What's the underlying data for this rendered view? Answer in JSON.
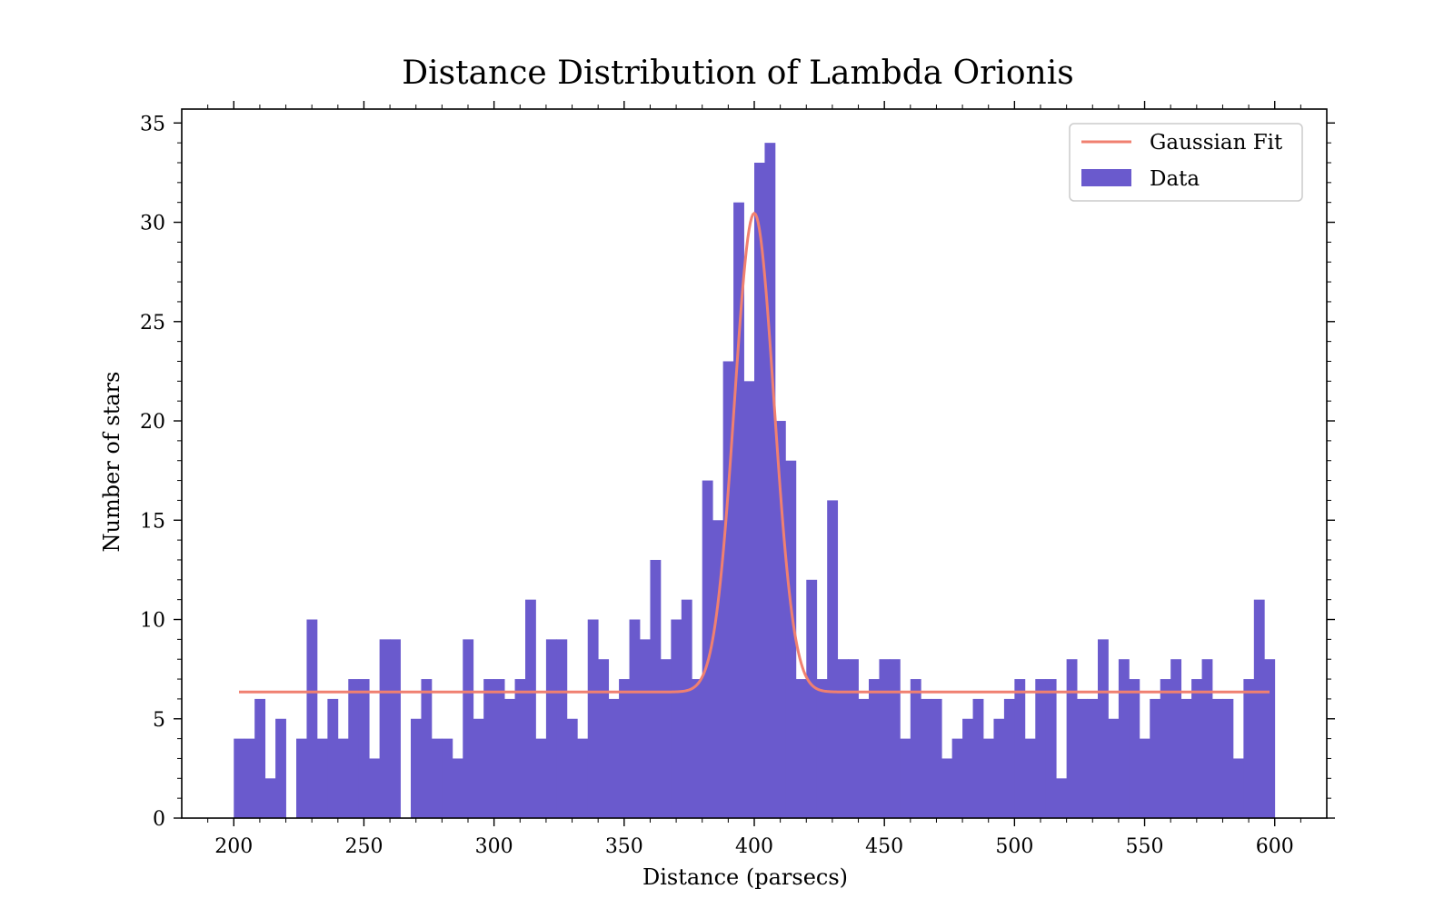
{
  "chart_data": {
    "type": "bar",
    "title": "Distance Distribution of Lambda Orionis",
    "xlabel": "Distance (parsecs)",
    "ylabel": "Number of stars",
    "xlim": [
      180,
      620
    ],
    "ylim": [
      0,
      35.7
    ],
    "xticks": [
      200,
      250,
      300,
      350,
      400,
      450,
      500,
      550,
      600
    ],
    "xtick_labels": [
      "200",
      "250",
      "300",
      "350",
      "400",
      "450",
      "500",
      "550",
      "600"
    ],
    "yticks": [
      0,
      5,
      10,
      15,
      20,
      25,
      30,
      35
    ],
    "ytick_labels": [
      "0",
      "5",
      "10",
      "15",
      "20",
      "25",
      "30",
      "35"
    ],
    "grid": false,
    "legend_position": "top-right",
    "bin_start": 200,
    "bin_width": 4,
    "series": [
      {
        "name": "Data",
        "type": "histogram",
        "color": "#6a5acd",
        "values": [
          4,
          4,
          6,
          2,
          5,
          0,
          4,
          10,
          4,
          6,
          4,
          7,
          7,
          3,
          9,
          9,
          0,
          5,
          7,
          4,
          4,
          3,
          9,
          5,
          7,
          7,
          6,
          7,
          11,
          4,
          9,
          9,
          5,
          4,
          10,
          8,
          6,
          7,
          10,
          9,
          13,
          8,
          10,
          11,
          7,
          17,
          15,
          23,
          31,
          22,
          33,
          34,
          20,
          18,
          7,
          12,
          7,
          16,
          8,
          8,
          6,
          7,
          8,
          8,
          4,
          7,
          6,
          6,
          3,
          4,
          5,
          6,
          4,
          5,
          6,
          7,
          4,
          7,
          7,
          2,
          8,
          6,
          6,
          9,
          5,
          8,
          7,
          4,
          6,
          7,
          8,
          6,
          7,
          8,
          6,
          6,
          3,
          7,
          11,
          8
        ]
      },
      {
        "name": "Gaussian Fit",
        "type": "line",
        "color": "#f08070",
        "baseline": 6.35,
        "amplitude": 24.1,
        "mean": 400,
        "sigma": 7.6
      }
    ]
  }
}
